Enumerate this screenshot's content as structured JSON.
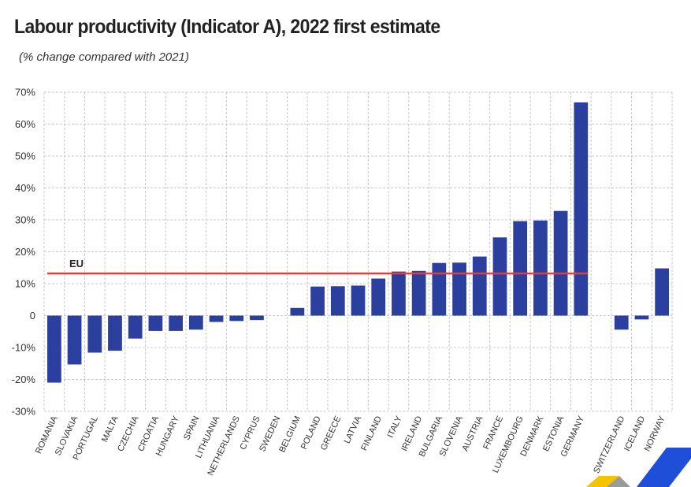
{
  "chart_data": {
    "type": "bar",
    "title": "Labour productivity (Indicator A), 2022 first estimate",
    "subtitle": "(% change compared with 2021)",
    "categories": [
      "ROMANIA",
      "SLOVAKIA",
      "PORTUGAL",
      "MALTA",
      "CZECHIA",
      "CROATIA",
      "HUNGARY",
      "SPAIN",
      "LITHUANIA",
      "NETHERLANDS",
      "CYPRUS",
      "SWEDEN",
      "BELGIUM",
      "POLAND",
      "GREECE",
      "LATVIA",
      "FINLAND",
      "ITALY",
      "IRELAND",
      "BULGARIA",
      "SLOVENIA",
      "AUSTRIA",
      "FRANCE",
      "LUXEMBOURG",
      "DENMARK",
      "ESTONIA",
      "GERMANY",
      "",
      "SWITZERLAND",
      "ICELAND",
      "NORWAY"
    ],
    "values": [
      -21,
      -15.3,
      -11.6,
      -11,
      -7.2,
      -4.8,
      -4.8,
      -4.4,
      -2,
      -1.7,
      -1.4,
      0,
      2.4,
      9.1,
      9.2,
      9.4,
      11.6,
      13.8,
      14,
      16.5,
      16.6,
      18.5,
      24.5,
      29.6,
      29.8,
      32.8,
      66.8,
      null,
      -4.4,
      -1.2,
      14.8
    ],
    "eu_reference": {
      "label": "EU",
      "value": 13.2
    },
    "ylim": [
      -30,
      70
    ],
    "yticks": [
      70,
      60,
      50,
      40,
      30,
      20,
      10,
      0,
      -10,
      -20,
      -30
    ],
    "ytick_labels": [
      "70%",
      "60%",
      "50%",
      "40%",
      "30%",
      "20%",
      "10%",
      "0",
      "-10%",
      "-20%",
      "-30%"
    ],
    "xlabel": "",
    "ylabel": "",
    "grid": true,
    "colors": {
      "bar": "#2b3f9e",
      "eu_line": "#e0403a",
      "grid": "#c8c8c8",
      "logo_yellow": "#f5c400",
      "logo_blue": "#1f4fd8",
      "logo_grey": "#9a9a9a"
    }
  }
}
